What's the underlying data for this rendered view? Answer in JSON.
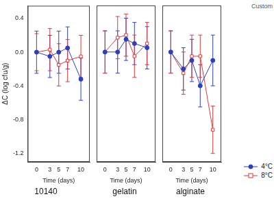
{
  "chart_data": [
    {
      "type": "line",
      "title": "10140",
      "xlabel": "Time (days)",
      "ylabel": "ΔC (log cfu/g)",
      "x": [
        0,
        3,
        5,
        7,
        10
      ],
      "series": [
        {
          "name": "4°C",
          "color": "#2b3fc4",
          "marker": "circle",
          "values": [
            0,
            -0.05,
            0.0,
            0.05,
            -0.32
          ],
          "errors": [
            0.25,
            0.25,
            0.25,
            0.25,
            0.25
          ]
        },
        {
          "name": "8°C",
          "color": "#d93a3a",
          "marker": "square",
          "values": [
            0,
            0.03,
            -0.15,
            -0.1,
            -0.05
          ],
          "errors": [
            0.22,
            0.25,
            0.25,
            0.25,
            0.25
          ]
        }
      ],
      "xlim": [
        -2,
        12
      ],
      "xticks": [
        0,
        3,
        5,
        7,
        10
      ],
      "ylim": [
        -1.3,
        0.55
      ],
      "yticks": [
        -1.2,
        -0.8,
        -0.4,
        {
          "value": 0,
          "label": "0.0"
        },
        0.4
      ],
      "grid": false
    },
    {
      "type": "line",
      "title": "gelatin",
      "xlabel": "Time (days)",
      "x": [
        0,
        3,
        5,
        7,
        10
      ],
      "series": [
        {
          "name": "4°C",
          "color": "#2b3fc4",
          "marker": "circle",
          "values": [
            0,
            0.0,
            0.15,
            0.1,
            0.05
          ],
          "errors": [
            0.25,
            0.25,
            0.25,
            0.25,
            0.25
          ]
        },
        {
          "name": "8°C",
          "color": "#d93a3a",
          "marker": "square",
          "values": [
            0,
            0.17,
            0.2,
            -0.05,
            0.1
          ],
          "errors": [
            0.25,
            0.25,
            0.25,
            0.25,
            0.25
          ]
        }
      ],
      "xlim": [
        -2,
        12
      ],
      "xticks": [
        0,
        3,
        5,
        7,
        10
      ],
      "ylim": [
        -1.3,
        0.55
      ],
      "yticks": [
        -1.2,
        -0.8,
        -0.4,
        {
          "value": 0,
          "label": "0.0"
        },
        0.4
      ],
      "grid": false,
      "tick_labels": "x"
    },
    {
      "type": "line",
      "title": "alginate",
      "xlabel": "Time (days)",
      "x": [
        0,
        3,
        5,
        7,
        10
      ],
      "series": [
        {
          "name": "4°C",
          "color": "#2b3fc4",
          "marker": "circle",
          "values": [
            0,
            -0.2,
            -0.1,
            -0.4,
            -0.1
          ],
          "errors": [
            0.25,
            0.25,
            0.25,
            0.25,
            0.3
          ]
        },
        {
          "name": "8°C",
          "color": "#d93a3a",
          "marker": "square",
          "values": [
            0,
            -0.25,
            -0.05,
            -0.05,
            -0.92
          ],
          "errors": [
            0.25,
            0.25,
            0.25,
            0.25,
            0.28
          ]
        }
      ],
      "xlim": [
        -2,
        12
      ],
      "xticks": [
        0,
        3,
        5,
        7,
        10
      ],
      "ylim": [
        -1.3,
        0.55
      ],
      "yticks": [
        -1.2,
        -0.8,
        -0.4,
        {
          "value": 0,
          "label": "0.0"
        },
        0.4
      ],
      "grid": false,
      "tick_labels": "x",
      "legend": "bottom right",
      "annotations": [
        "Custom"
      ]
    }
  ]
}
